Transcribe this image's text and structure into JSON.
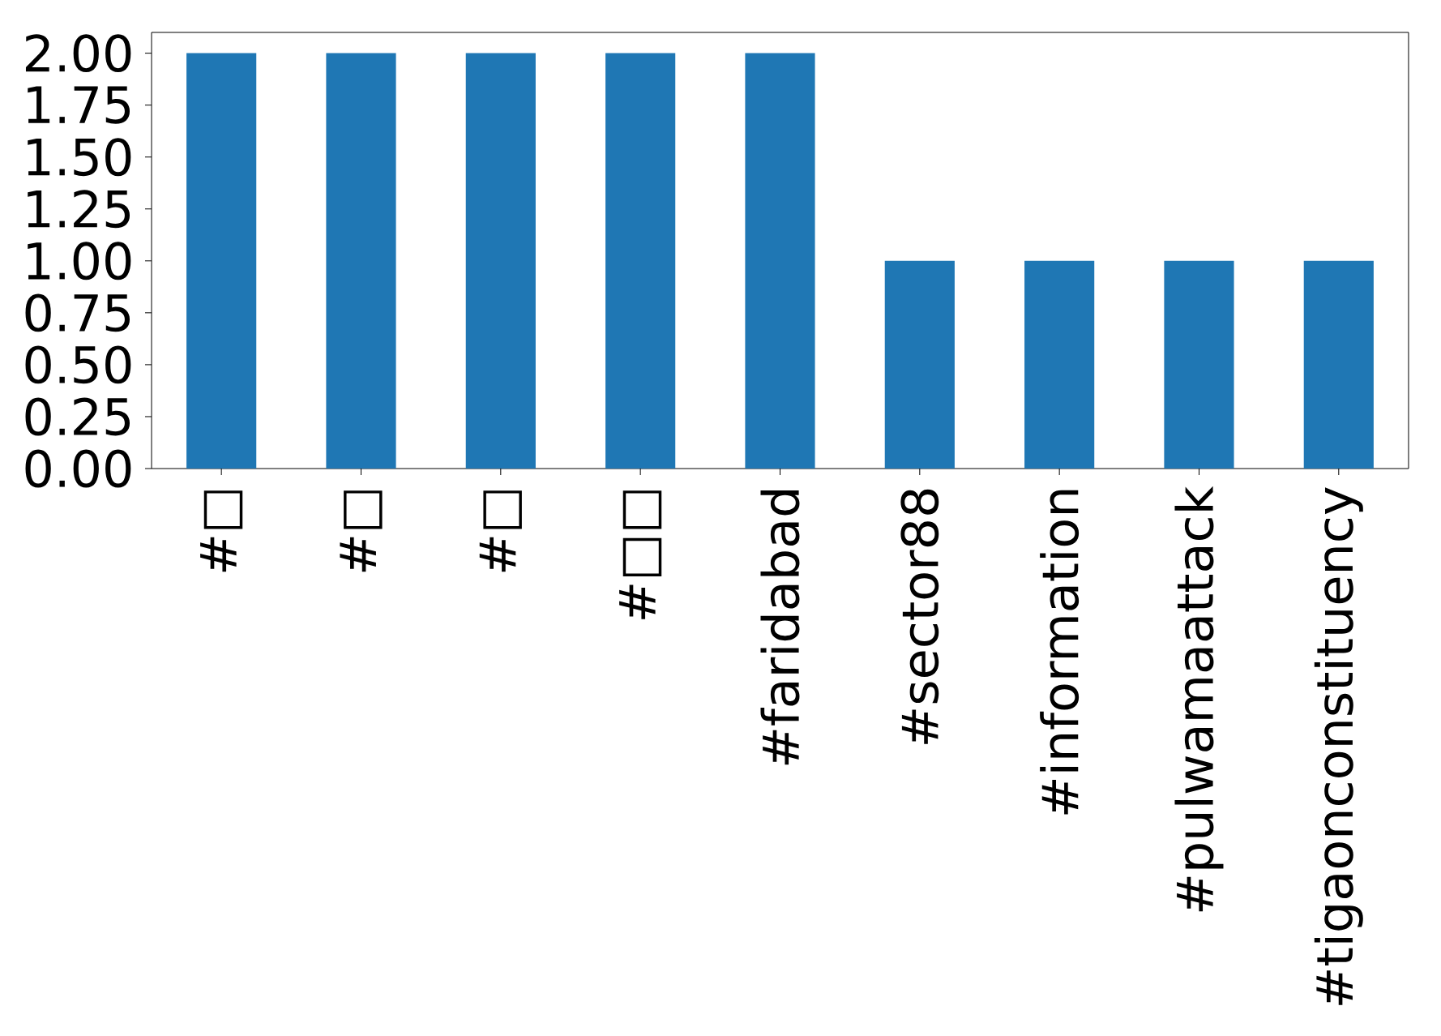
{
  "chart_data": {
    "type": "bar",
    "categories": [
      "#□",
      "#□",
      "#□",
      "#□□",
      "#faridabad",
      "#sector88",
      "#information",
      "#pulwamaattack",
      "#tigaonconstituency"
    ],
    "values": [
      2,
      2,
      2,
      2,
      2,
      1,
      1,
      1,
      1
    ],
    "color": "#1f77b4",
    "ylim": [
      0,
      2.1
    ],
    "yticks": [
      {
        "value": 0,
        "label": "0.00"
      },
      {
        "value": 0.25,
        "label": "0.25"
      },
      {
        "value": 0.5,
        "label": "0.50"
      },
      {
        "value": 0.75,
        "label": "0.75"
      },
      {
        "value": 1,
        "label": "1.00"
      },
      {
        "value": 1.25,
        "label": "1.25"
      },
      {
        "value": 1.5,
        "label": "1.50"
      },
      {
        "value": 1.75,
        "label": "1.75"
      },
      {
        "value": 2,
        "label": "2.00"
      }
    ],
    "grid": false
  }
}
